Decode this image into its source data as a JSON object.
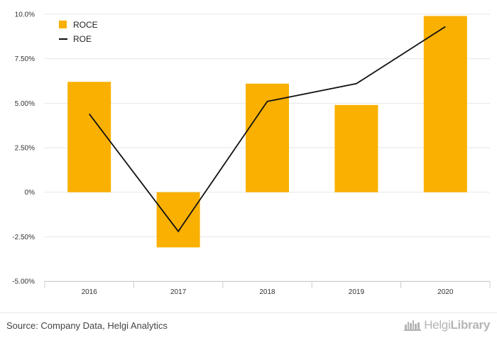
{
  "chart_data": {
    "type": "bar",
    "categories": [
      "2016",
      "2017",
      "2018",
      "2019",
      "2020"
    ],
    "series": [
      {
        "name": "ROCE",
        "kind": "bar",
        "color": "#f9b000",
        "values": [
          6.2,
          -3.1,
          6.1,
          4.9,
          9.9
        ]
      },
      {
        "name": "ROE",
        "kind": "line",
        "color": "#111111",
        "values": [
          4.4,
          -2.2,
          5.1,
          6.1,
          9.3
        ]
      }
    ],
    "ylim": [
      -5,
      10
    ],
    "yticks": [
      "10.0%",
      "7.50%",
      "5.00%",
      "2.50%",
      "0%",
      "-2.50%",
      "-5.00%"
    ],
    "ytick_values": [
      10,
      7.5,
      5,
      2.5,
      0,
      -2.5,
      -5
    ],
    "grid": true,
    "legend_position": "top-left"
  },
  "footer": {
    "source": "Source: Company Data, Helgi Analytics",
    "brand_light": "Helgi",
    "brand_bold": "Library"
  }
}
